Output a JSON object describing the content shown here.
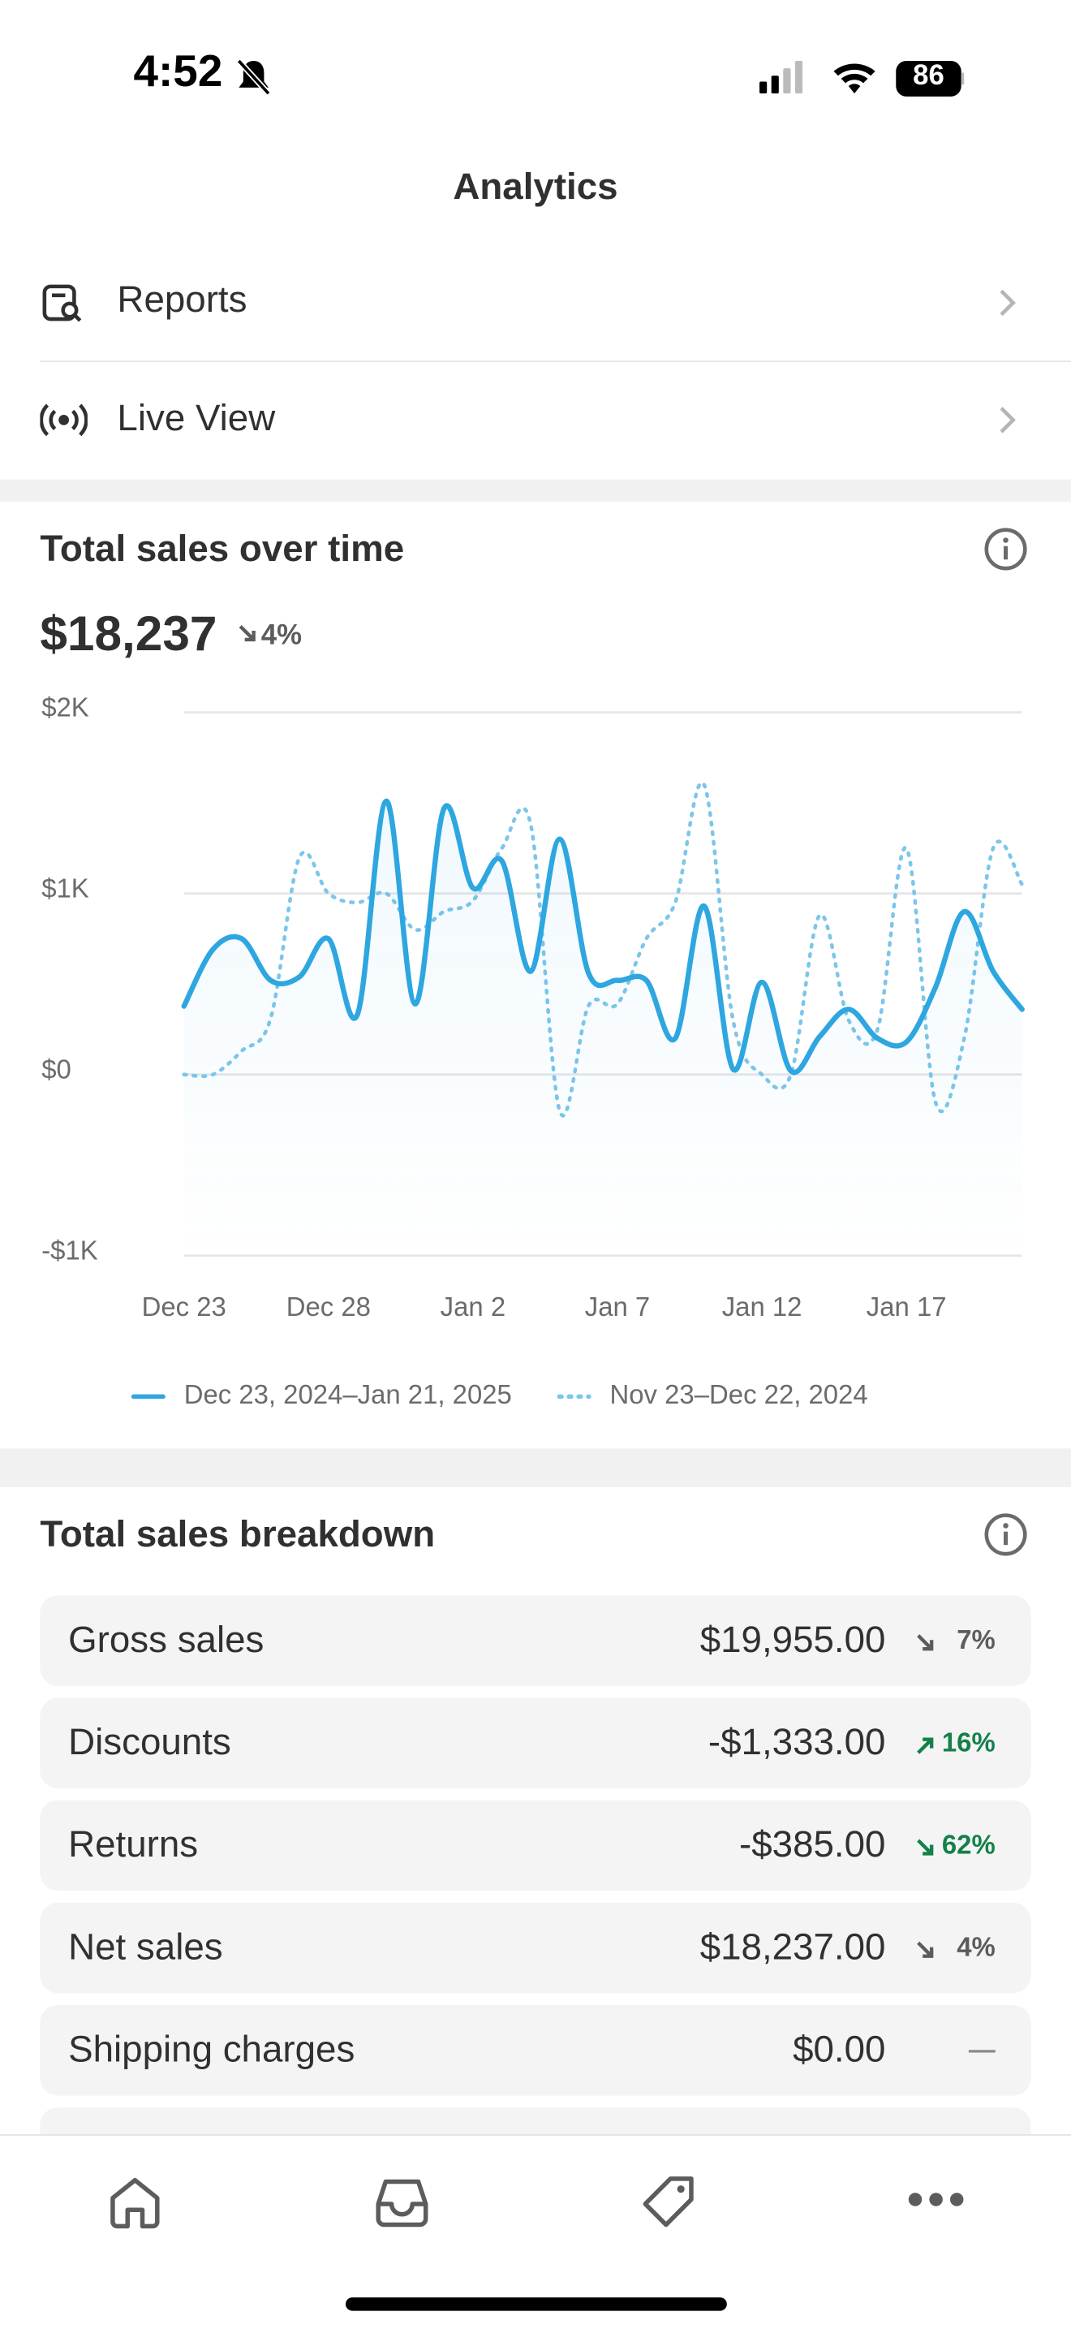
{
  "status_bar": {
    "time": "4:52",
    "battery": "86"
  },
  "header": {
    "title": "Analytics"
  },
  "menu": [
    {
      "label": "Reports"
    },
    {
      "label": "Live View"
    }
  ],
  "chart_data": {
    "type": "line",
    "title": "Total sales over time",
    "total": "$18,237",
    "change": "4%",
    "change_direction": "down",
    "categories": [
      "Dec 23",
      null,
      null,
      null,
      null,
      "Dec 28",
      null,
      null,
      null,
      null,
      "Jan 2",
      null,
      null,
      null,
      null,
      "Jan 7",
      null,
      null,
      null,
      null,
      "Jan 12",
      null,
      null,
      null,
      null,
      "Jan 17",
      null,
      null,
      null,
      null
    ],
    "series": [
      {
        "name": "Dec 23, 2024–Jan 21, 2025",
        "color": "#2ea6e0",
        "dash": false,
        "values": [
          377,
          690,
          750,
          520,
          540,
          750,
          330,
          1510,
          390,
          1470,
          1030,
          1180,
          570,
          1300,
          560,
          520,
          520,
          200,
          930,
          30,
          510,
          20,
          210,
          360,
          200,
          180,
          480,
          900,
          570,
          360
        ]
      },
      {
        "name": "Nov 23–Dec 22, 2024",
        "color": "#7cc6ea",
        "dash": true,
        "values": [
          0,
          0,
          130,
          310,
          1200,
          1000,
          950,
          1000,
          800,
          900,
          960,
          1250,
          1380,
          -200,
          380,
          390,
          750,
          950,
          1600,
          300,
          0,
          0,
          880,
          300,
          250,
          1250,
          -150,
          200,
          1250,
          1050
        ]
      }
    ],
    "ylim": [
      -1000,
      2000
    ],
    "yticks": [
      {
        "value": -1000,
        "label": "-$1K"
      },
      {
        "value": 0,
        "label": "$0"
      },
      {
        "value": 1000,
        "label": "$1K"
      },
      {
        "value": 2000,
        "label": "$2K"
      }
    ],
    "grid": true
  },
  "breakdown": {
    "title": "Total sales breakdown",
    "rows": [
      {
        "label": "Gross sales",
        "amount": "$19,955.00",
        "change": "7%",
        "direction": "down",
        "color": "#5c5c5c"
      },
      {
        "label": "Discounts",
        "amount": "-$1,333.00",
        "change": "16%",
        "direction": "up",
        "color": "#14804a"
      },
      {
        "label": "Returns",
        "amount": "-$385.00",
        "change": "62%",
        "direction": "down",
        "color": "#14804a"
      },
      {
        "label": "Net sales",
        "amount": "$18,237.00",
        "change": "4%",
        "direction": "down",
        "color": "#5c5c5c"
      },
      {
        "label": "Shipping charges",
        "amount": "$0.00",
        "change": "—",
        "color": "#8a8a8a"
      }
    ]
  }
}
